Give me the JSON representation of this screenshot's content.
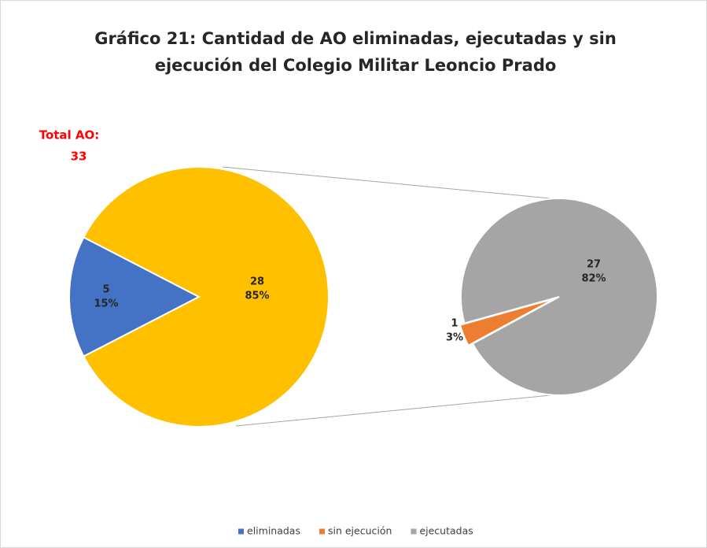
{
  "chart_data": {
    "type": "pie-of-pie",
    "title": [
      "Gráfico 21: Cantidad de AO eliminadas, ejecutadas y sin",
      "ejecución del Colegio Militar Leoncio Prado"
    ],
    "annotation": {
      "label": "Total AO:",
      "value": 33,
      "color": "#ff0000"
    },
    "main": [
      {
        "name": "eliminadas",
        "color": "#4472c4",
        "value": 5,
        "percent": 15,
        "percent_label": "15%"
      },
      {
        "color": "#ffc000",
        "value": 28,
        "percent": 85,
        "percent_label": "85%"
      }
    ],
    "secondary": [
      {
        "name": "sin ejecución",
        "color": "#ed7d31",
        "value": 1,
        "percent": 3,
        "percent_label": "3%"
      },
      {
        "name": "ejecutadas",
        "color": "#a5a5a5",
        "value": 27,
        "percent": 82,
        "percent_label": "82%"
      }
    ],
    "legend": "bottom"
  }
}
